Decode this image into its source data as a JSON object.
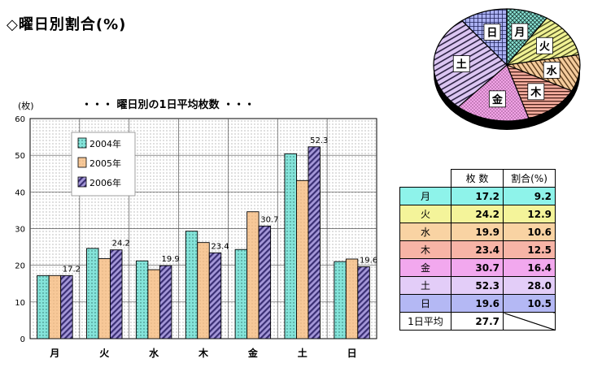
{
  "header": {
    "title": "◇曜日別割合(%)",
    "bar_subtitle": "・・・ 曜日別の1日平均枚数 ・・・",
    "unit": "(枚)"
  },
  "chart_data": [
    {
      "type": "bar",
      "title": "・・・ 曜日別の1日平均枚数 ・・・",
      "ylabel": "(枚)",
      "ylim": [
        0,
        60
      ],
      "yticks": [
        0,
        10,
        20,
        30,
        40,
        50,
        60
      ],
      "categories": [
        "月",
        "火",
        "水",
        "木",
        "金",
        "土",
        "日"
      ],
      "legend_position": "top-left",
      "grid": true,
      "series": [
        {
          "name": "2004年",
          "values": [
            17.2,
            24.6,
            21.2,
            29.3,
            24.3,
            50.4,
            21.0
          ]
        },
        {
          "name": "2005年",
          "values": [
            17.2,
            21.8,
            18.8,
            26.2,
            34.6,
            43.1,
            21.7
          ]
        },
        {
          "name": "2006年",
          "values": [
            17.2,
            24.2,
            19.9,
            23.4,
            30.7,
            52.3,
            19.6
          ]
        }
      ],
      "data_labels": [
        "17.2",
        "24.2",
        "19.9",
        "23.4",
        "30.7",
        "52.3",
        "19.6"
      ],
      "colors": {
        "2004": "#7ee0d6",
        "2005": "#f5c593",
        "2006": "#8e7fc7"
      }
    },
    {
      "type": "pie",
      "labels": [
        "月",
        "火",
        "水",
        "木",
        "金",
        "土",
        "日"
      ],
      "values": [
        9.2,
        12.9,
        10.6,
        12.5,
        16.4,
        28.0,
        10.5
      ],
      "colors": [
        "#7fe3d3",
        "#eef08c",
        "#f2c89a",
        "#f2a89c",
        "#ee9ce3",
        "#d8c2f0",
        "#a9aef0"
      ]
    },
    {
      "type": "table",
      "columns": [
        "",
        "枚 数",
        "割合(%)"
      ],
      "rows": [
        {
          "day": "月",
          "count": "17.2",
          "pct": "9.2",
          "color": "#8ef3ea"
        },
        {
          "day": "火",
          "count": "24.2",
          "pct": "12.9",
          "color": "#f4f49a"
        },
        {
          "day": "水",
          "count": "19.9",
          "pct": "10.6",
          "color": "#f9d3a3"
        },
        {
          "day": "木",
          "count": "23.4",
          "pct": "12.5",
          "color": "#f7b4a6"
        },
        {
          "day": "金",
          "count": "30.7",
          "pct": "16.4",
          "color": "#f2a8ee"
        },
        {
          "day": "土",
          "count": "52.3",
          "pct": "28.0",
          "color": "#e3cdf8"
        },
        {
          "day": "日",
          "count": "19.6",
          "pct": "10.5",
          "color": "#b4b8f4"
        }
      ],
      "footer": {
        "label": "1日平均",
        "value": "27.7"
      }
    }
  ]
}
